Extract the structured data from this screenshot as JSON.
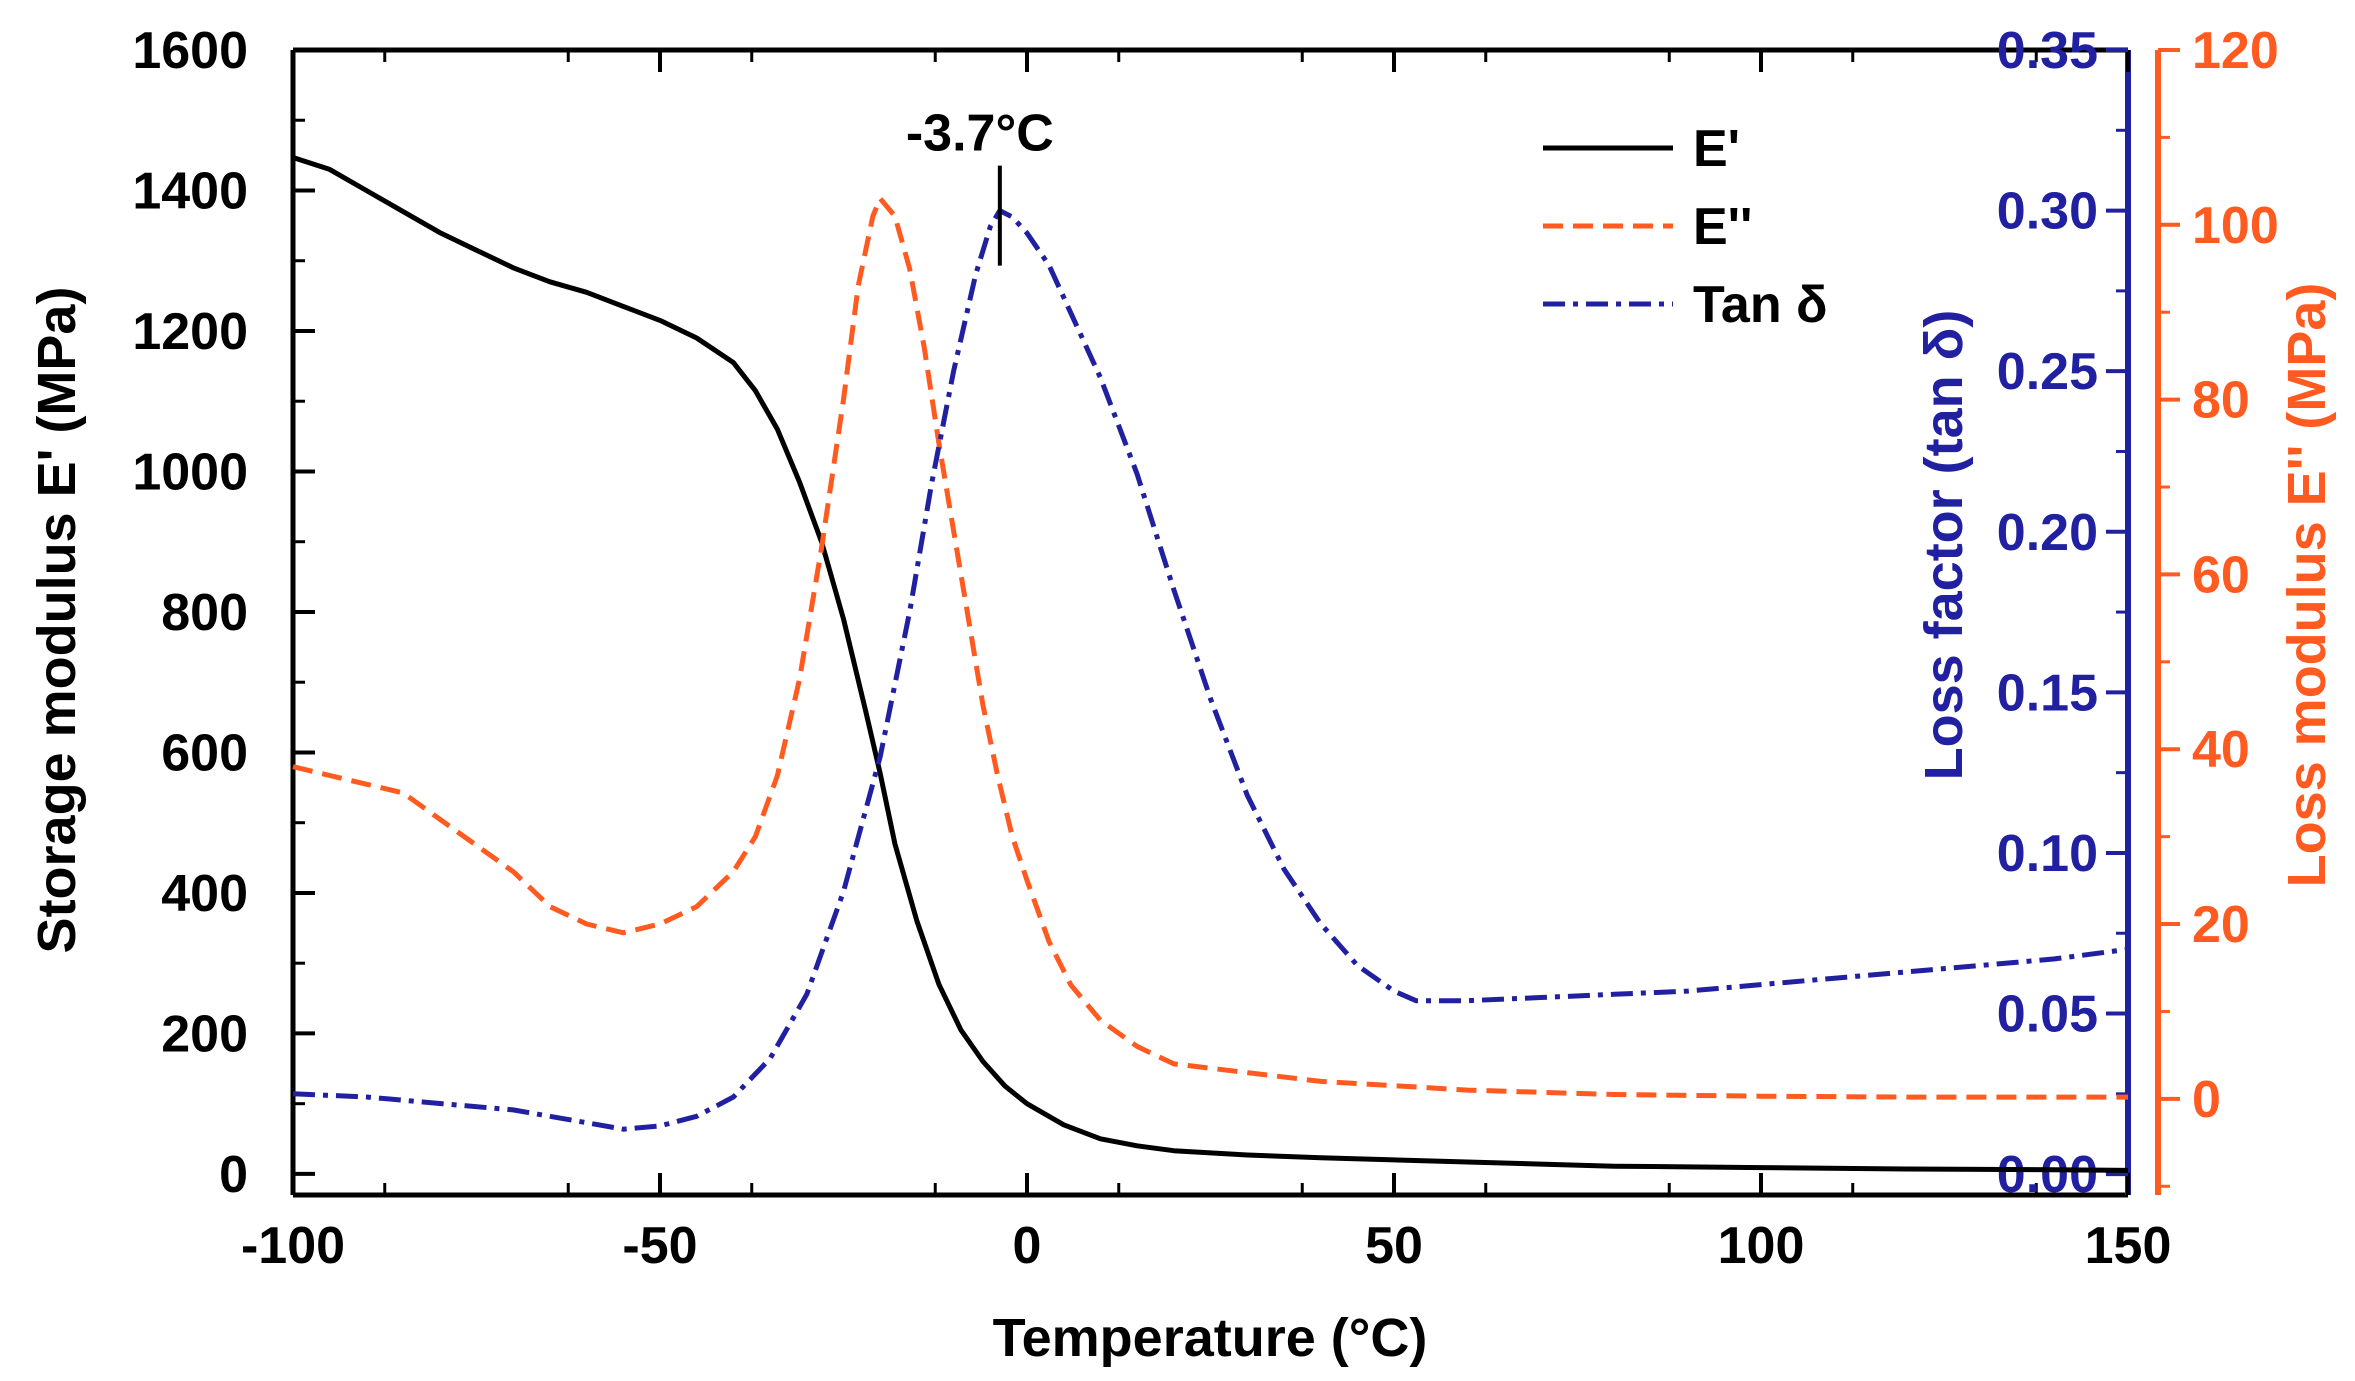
{
  "chart_data": {
    "type": "line",
    "x": {
      "label": "Temperature (°C)",
      "range": [
        -100,
        150
      ],
      "ticks": [
        -100,
        -50,
        0,
        50,
        100,
        150
      ],
      "tick_labels": [
        "-100",
        "-50",
        "0",
        "50",
        "100",
        "150"
      ]
    },
    "y_left": {
      "label": "Storage modulus E' (MPa)",
      "range": [
        -30,
        1600
      ],
      "ticks": [
        0,
        200,
        400,
        600,
        800,
        1000,
        1200,
        1400,
        1600
      ],
      "tick_labels": [
        "0",
        "200",
        "400",
        "600",
        "800",
        "1000",
        "1200",
        "1400",
        "1600"
      ],
      "color": "#000000"
    },
    "y_right1": {
      "label": "Loss factor (tan δ)",
      "range": [
        -0.0065,
        0.35
      ],
      "ticks": [
        0.0,
        0.05,
        0.1,
        0.15,
        0.2,
        0.25,
        0.3,
        0.35
      ],
      "tick_labels": [
        "0.00",
        "0.05",
        "0.10",
        "0.15",
        "0.20",
        "0.25",
        "0.30",
        "0.35"
      ],
      "color": "#2020a0"
    },
    "y_right2": {
      "label": "Loss modulus E'' (MPa)",
      "range": [
        -11,
        120
      ],
      "ticks": [
        0,
        20,
        40,
        60,
        80,
        100,
        120
      ],
      "tick_labels": [
        "0",
        "20",
        "40",
        "60",
        "80",
        "100",
        "120"
      ],
      "color": "#ff5a1f"
    },
    "series": [
      {
        "name": "E'",
        "axis": "y_left",
        "color": "#000000",
        "style": "solid",
        "points": [
          [
            -100,
            1447
          ],
          [
            -95,
            1430
          ],
          [
            -90,
            1400
          ],
          [
            -85,
            1370
          ],
          [
            -80,
            1340
          ],
          [
            -75,
            1315
          ],
          [
            -70,
            1290
          ],
          [
            -65,
            1270
          ],
          [
            -60,
            1255
          ],
          [
            -55,
            1235
          ],
          [
            -50,
            1215
          ],
          [
            -45,
            1190
          ],
          [
            -40,
            1155
          ],
          [
            -37,
            1115
          ],
          [
            -34,
            1060
          ],
          [
            -31,
            985
          ],
          [
            -28,
            900
          ],
          [
            -25,
            790
          ],
          [
            -22,
            660
          ],
          [
            -20,
            570
          ],
          [
            -18,
            470
          ],
          [
            -15,
            360
          ],
          [
            -12,
            270
          ],
          [
            -9,
            205
          ],
          [
            -6,
            160
          ],
          [
            -3,
            125
          ],
          [
            0,
            100
          ],
          [
            5,
            70
          ],
          [
            10,
            50
          ],
          [
            15,
            40
          ],
          [
            20,
            33
          ],
          [
            30,
            27
          ],
          [
            40,
            23
          ],
          [
            50,
            20
          ],
          [
            60,
            17
          ],
          [
            70,
            14
          ],
          [
            80,
            11
          ],
          [
            100,
            9
          ],
          [
            120,
            7
          ],
          [
            140,
            6
          ],
          [
            150,
            5
          ]
        ]
      },
      {
        "name": "E''",
        "axis": "y_right2",
        "color": "#ff5a1f",
        "style": "dashed",
        "points": [
          [
            -100,
            38
          ],
          [
            -95,
            37
          ],
          [
            -90,
            36
          ],
          [
            -85,
            35
          ],
          [
            -80,
            32
          ],
          [
            -75,
            29
          ],
          [
            -70,
            26
          ],
          [
            -65,
            22
          ],
          [
            -60,
            20
          ],
          [
            -55,
            19
          ],
          [
            -50,
            20
          ],
          [
            -45,
            22
          ],
          [
            -40,
            26
          ],
          [
            -37,
            30
          ],
          [
            -34,
            37
          ],
          [
            -31,
            48
          ],
          [
            -28,
            63
          ],
          [
            -25,
            80
          ],
          [
            -23,
            93
          ],
          [
            -21,
            101
          ],
          [
            -20,
            103
          ],
          [
            -18,
            101
          ],
          [
            -16,
            95
          ],
          [
            -14,
            86
          ],
          [
            -12,
            75
          ],
          [
            -10,
            65
          ],
          [
            -8,
            55
          ],
          [
            -6,
            45
          ],
          [
            -4,
            37
          ],
          [
            -2,
            30
          ],
          [
            0,
            25
          ],
          [
            3,
            18
          ],
          [
            6,
            13
          ],
          [
            10,
            9
          ],
          [
            15,
            6
          ],
          [
            20,
            4
          ],
          [
            30,
            3
          ],
          [
            40,
            2
          ],
          [
            50,
            1.5
          ],
          [
            60,
            1
          ],
          [
            80,
            0.5
          ],
          [
            100,
            0.3
          ],
          [
            120,
            0.2
          ],
          [
            150,
            0.2
          ]
        ]
      },
      {
        "name": "Tan δ",
        "axis": "y_right1",
        "color": "#2020a0",
        "style": "dashdot",
        "points": [
          [
            -100,
            0.025
          ],
          [
            -90,
            0.024
          ],
          [
            -80,
            0.022
          ],
          [
            -70,
            0.02
          ],
          [
            -60,
            0.016
          ],
          [
            -55,
            0.014
          ],
          [
            -50,
            0.015
          ],
          [
            -45,
            0.018
          ],
          [
            -40,
            0.024
          ],
          [
            -35,
            0.036
          ],
          [
            -30,
            0.056
          ],
          [
            -25,
            0.088
          ],
          [
            -20,
            0.13
          ],
          [
            -16,
            0.175
          ],
          [
            -13,
            0.215
          ],
          [
            -10,
            0.25
          ],
          [
            -7,
            0.28
          ],
          [
            -5,
            0.295
          ],
          [
            -3.7,
            0.3
          ],
          [
            -2,
            0.298
          ],
          [
            0,
            0.293
          ],
          [
            3,
            0.283
          ],
          [
            6,
            0.268
          ],
          [
            10,
            0.248
          ],
          [
            15,
            0.218
          ],
          [
            20,
            0.182
          ],
          [
            25,
            0.148
          ],
          [
            30,
            0.118
          ],
          [
            35,
            0.095
          ],
          [
            40,
            0.078
          ],
          [
            45,
            0.065
          ],
          [
            50,
            0.057
          ],
          [
            53,
            0.054
          ],
          [
            60,
            0.054
          ],
          [
            70,
            0.055
          ],
          [
            80,
            0.056
          ],
          [
            90,
            0.057
          ],
          [
            100,
            0.059
          ],
          [
            110,
            0.061
          ],
          [
            120,
            0.063
          ],
          [
            130,
            0.065
          ],
          [
            140,
            0.067
          ],
          [
            150,
            0.07
          ]
        ]
      }
    ],
    "annotations": [
      {
        "text": "-3.7°C",
        "x": -3.7,
        "axis": "y_right1",
        "y": 0.3
      }
    ],
    "legend_position": "top-right",
    "grid": false
  }
}
